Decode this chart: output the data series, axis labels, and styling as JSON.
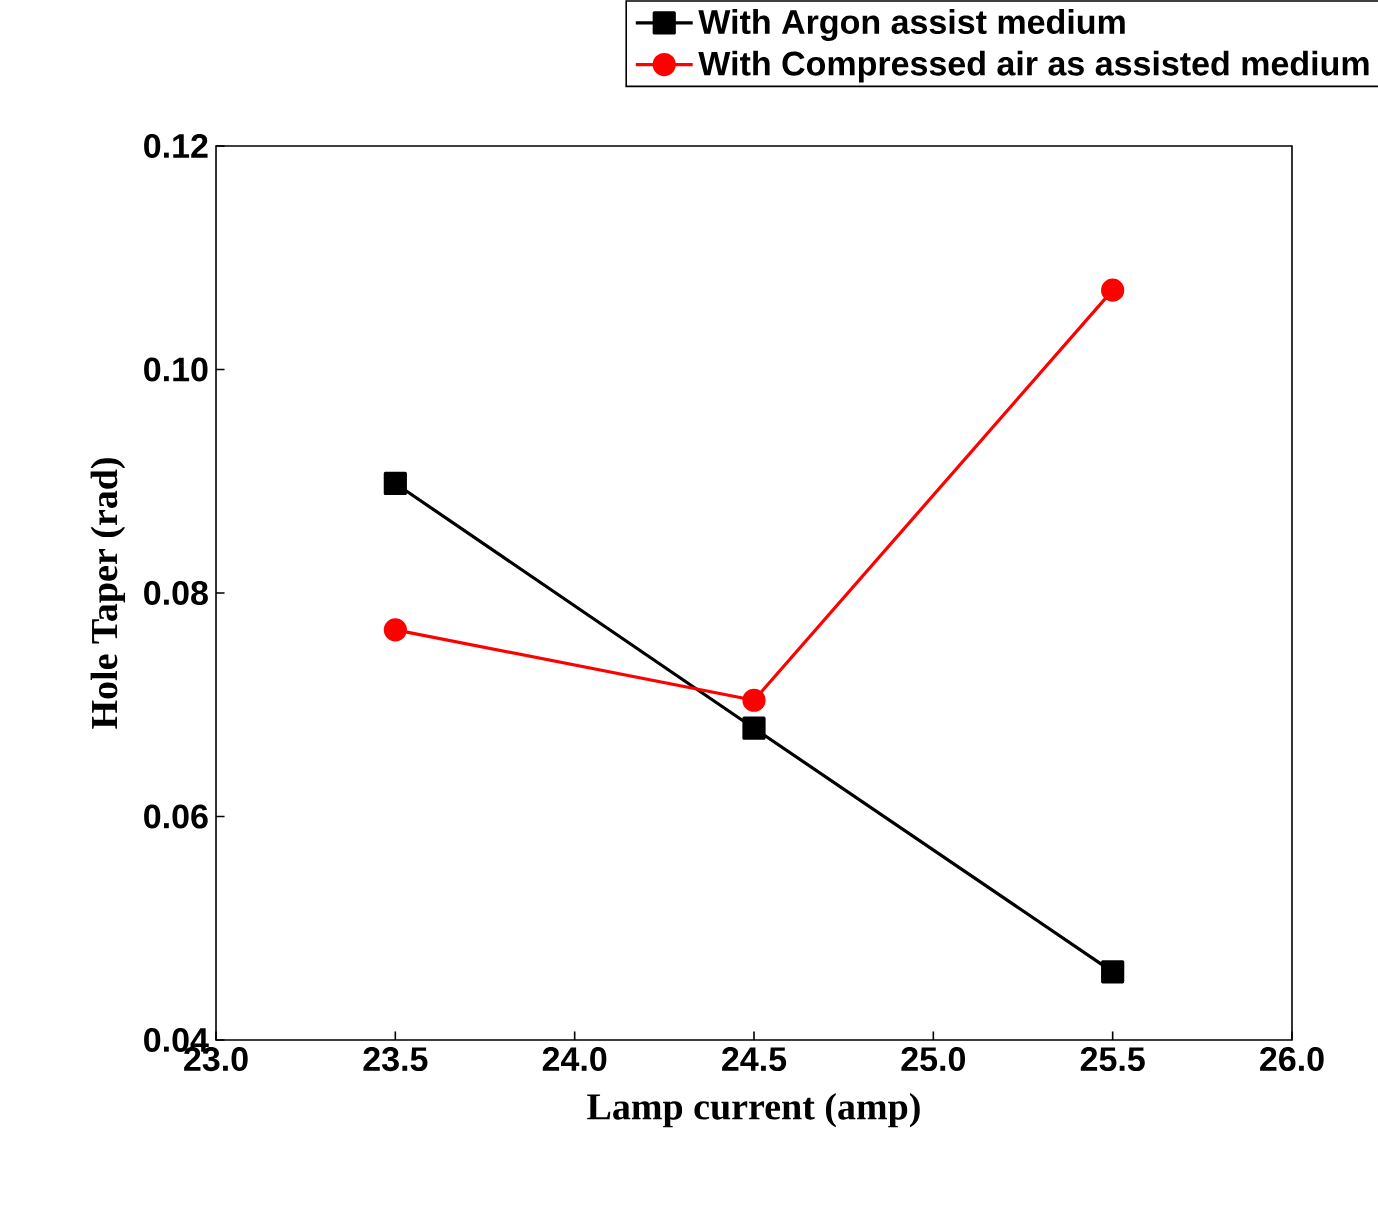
{
  "chart_data": {
    "type": "line",
    "xlabel": "Lamp current (amp)",
    "ylabel": "Hole Taper (rad)",
    "x": [
      23.5,
      24.5,
      25.5
    ],
    "series": [
      {
        "name": "With Argon assist medium",
        "color": "#000000",
        "marker": "square",
        "values": [
          0.0898,
          0.0679,
          0.0461
        ]
      },
      {
        "name": "With Compressed air as assisted medium",
        "color": "#ff0000",
        "marker": "circle",
        "values": [
          0.0767,
          0.0704,
          0.1071
        ]
      }
    ],
    "xlim": [
      23.0,
      26.0
    ],
    "xticks": [
      {
        "value": 23.0,
        "label": "23.0"
      },
      {
        "value": 23.5,
        "label": "23.5"
      },
      {
        "value": 24.0,
        "label": "24.0"
      },
      {
        "value": 24.5,
        "label": "24.5"
      },
      {
        "value": 25.0,
        "label": "25.0"
      },
      {
        "value": 25.5,
        "label": "25.5"
      },
      {
        "value": 26.0,
        "label": "26.0"
      }
    ],
    "ylim": [
      0.04,
      0.12
    ],
    "yticks": [
      {
        "value": 0.04,
        "label": "0.04"
      },
      {
        "value": 0.06,
        "label": "0.06"
      },
      {
        "value": 0.08,
        "label": "0.08"
      },
      {
        "value": 0.1,
        "label": "0.10"
      },
      {
        "value": 0.12,
        "label": "0.12"
      }
    ],
    "legend": "top right",
    "grid": false,
    "line_style": "solid"
  }
}
